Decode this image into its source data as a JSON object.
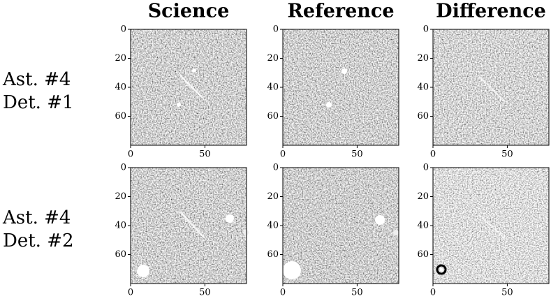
{
  "column_titles": [
    "Science",
    "Reference",
    "Difference"
  ],
  "row_labels": [
    [
      "Ast. #4",
      "Det. #1"
    ],
    [
      "Ast. #4",
      "Det. #2"
    ]
  ],
  "chart_data": [
    {
      "type": "image",
      "xlim": [
        0,
        78
      ],
      "ylim": [
        80,
        0
      ],
      "xticks": [
        0,
        50
      ],
      "yticks": [
        0,
        20,
        40,
        60
      ]
    },
    {
      "type": "image",
      "xlim": [
        0,
        78
      ],
      "ylim": [
        80,
        0
      ],
      "xticks": [
        0,
        50
      ],
      "yticks": [
        0,
        20,
        40,
        60
      ]
    },
    {
      "type": "image",
      "xlim": [
        0,
        78
      ],
      "ylim": [
        80,
        0
      ],
      "xticks": [
        0,
        50
      ],
      "yticks": [
        0,
        20,
        40,
        60
      ]
    },
    {
      "type": "image",
      "xlim": [
        0,
        78
      ],
      "ylim": [
        80,
        0
      ],
      "xticks": [
        0,
        50
      ],
      "yticks": [
        0,
        20,
        40,
        60
      ]
    },
    {
      "type": "image",
      "xlim": [
        0,
        78
      ],
      "ylim": [
        80,
        0
      ],
      "xticks": [
        0,
        50
      ],
      "yticks": [
        0,
        20,
        40,
        60
      ]
    },
    {
      "type": "image",
      "xlim": [
        0,
        78
      ],
      "ylim": [
        80,
        0
      ],
      "xticks": [
        0,
        50
      ],
      "yticks": [
        0,
        20,
        40,
        60
      ]
    }
  ]
}
